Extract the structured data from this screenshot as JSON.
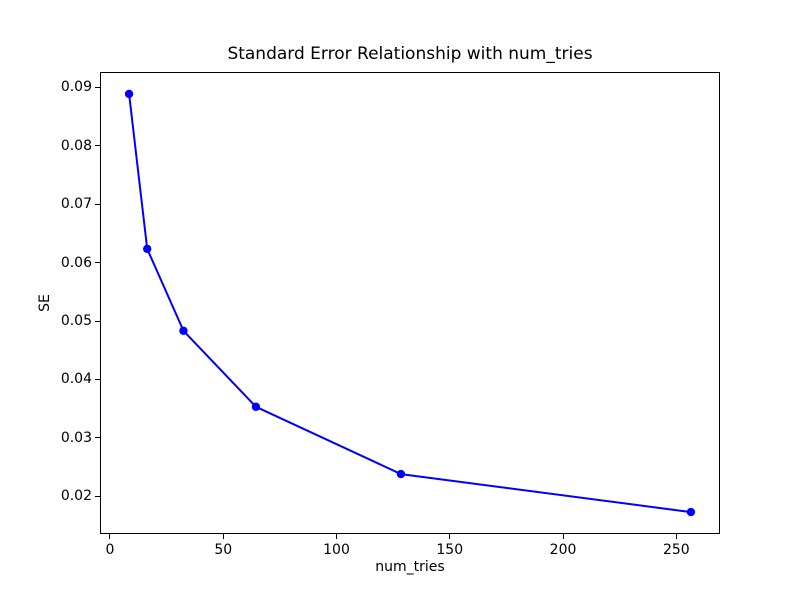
{
  "figure": {
    "background": "#ffffff",
    "spine_color": "#000000"
  },
  "chart_data": {
    "type": "line",
    "title": "Standard Error Relationship with num_tries",
    "xlabel": "num_tries",
    "ylabel": "SE",
    "x": [
      8,
      16,
      32,
      64,
      128,
      256
    ],
    "y": [
      0.089,
      0.0625,
      0.0485,
      0.0355,
      0.024,
      0.0175
    ],
    "series": [
      {
        "name": "SE",
        "color": "#0000ff",
        "marker": "circle",
        "line_width": 2,
        "marker_radius": 4.2
      }
    ],
    "xlim": [
      -4.4,
      268.4
    ],
    "ylim": [
      0.013925,
      0.092575
    ],
    "xticks": [
      0,
      50,
      100,
      150,
      200,
      250
    ],
    "xtick_labels": [
      "0",
      "50",
      "100",
      "150",
      "200",
      "250"
    ],
    "yticks": [
      0.02,
      0.03,
      0.04,
      0.05,
      0.06,
      0.07,
      0.08,
      0.09
    ],
    "ytick_labels": [
      "0.02",
      "0.03",
      "0.04",
      "0.05",
      "0.06",
      "0.07",
      "0.08",
      "0.09"
    ],
    "grid": false,
    "legend": null
  }
}
